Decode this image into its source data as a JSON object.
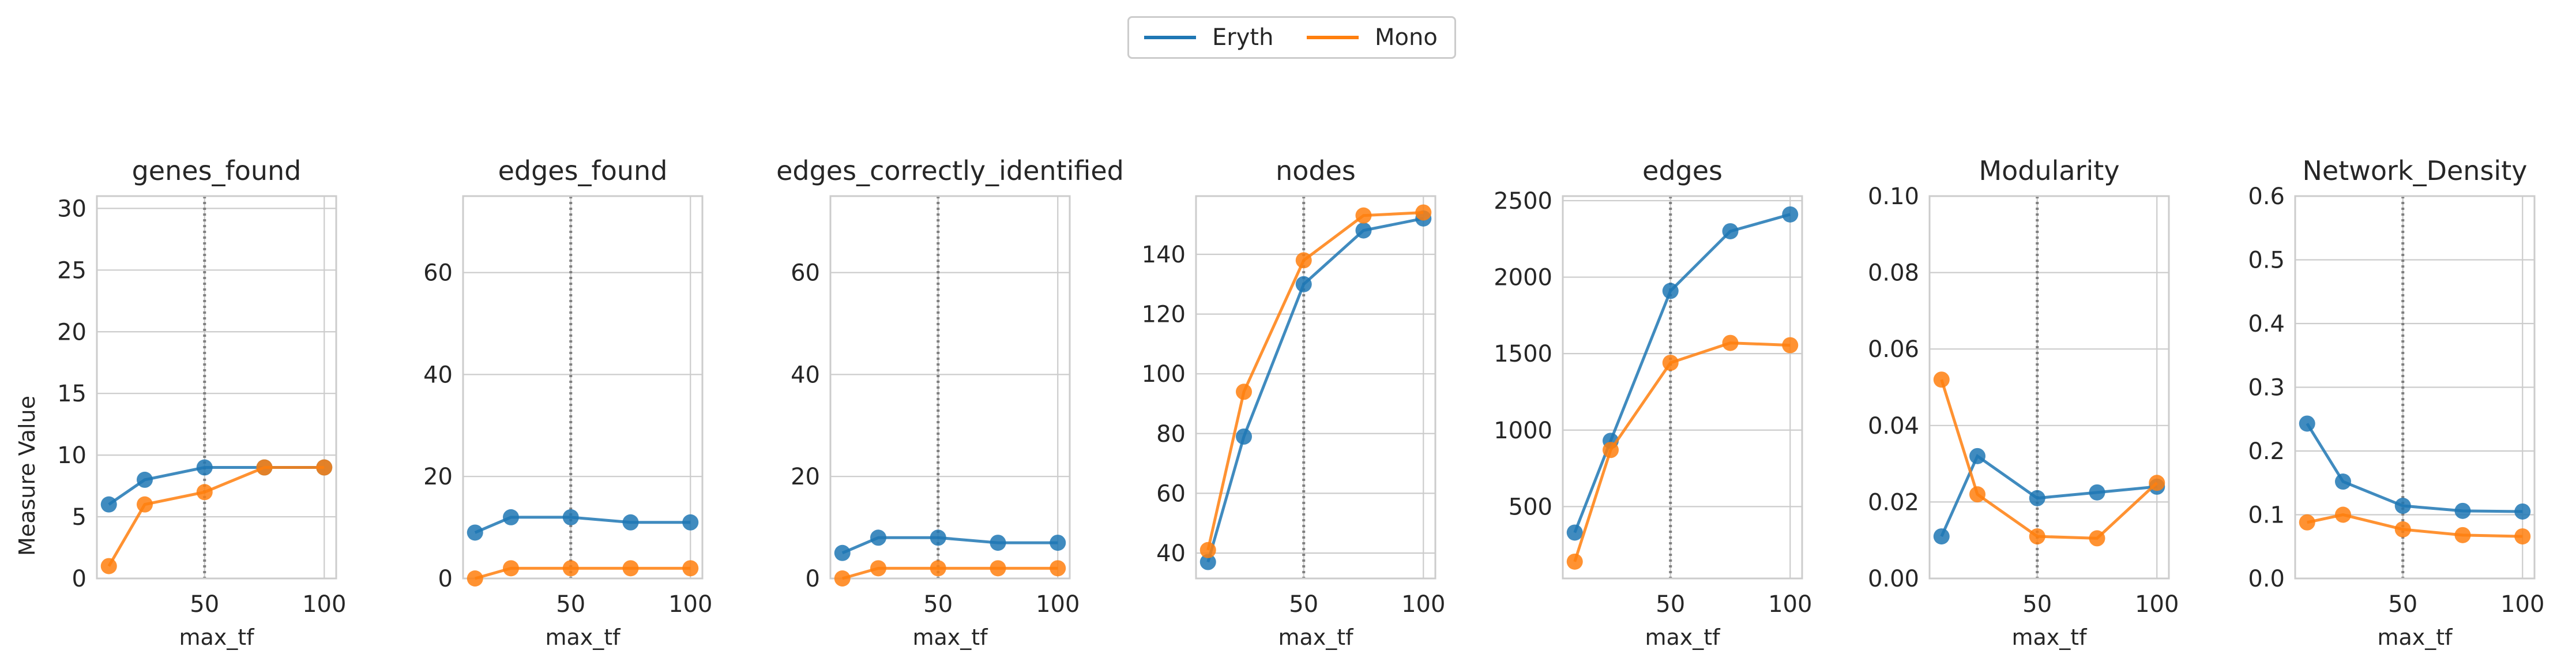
{
  "legend": {
    "items": [
      {
        "label": "Eryth",
        "color": "#1f77b4"
      },
      {
        "label": "Mono",
        "color": "#ff7f0e"
      }
    ]
  },
  "figure": {
    "ylabel": "Measure Value"
  },
  "chart_data": [
    {
      "type": "line",
      "title": "genes_found",
      "xlabel": "max_tf",
      "ylabel": "Measure Value",
      "xlim": [
        5,
        105
      ],
      "ylim": [
        0,
        31
      ],
      "xticks": [
        50,
        100
      ],
      "yticks": [
        0,
        5,
        10,
        15,
        20,
        25,
        30
      ],
      "vline": 50,
      "x": [
        10,
        25,
        50,
        75,
        100
      ],
      "series": [
        {
          "name": "Eryth",
          "values": [
            6,
            8,
            9,
            9,
            9
          ]
        },
        {
          "name": "Mono",
          "values": [
            1,
            6,
            7,
            9,
            9
          ]
        }
      ]
    },
    {
      "type": "line",
      "title": "edges_found",
      "xlabel": "max_tf",
      "ylabel": "",
      "xlim": [
        5,
        105
      ],
      "ylim": [
        0,
        75
      ],
      "xticks": [
        50,
        100
      ],
      "yticks": [
        0,
        20,
        40,
        60
      ],
      "vline": 50,
      "x": [
        10,
        25,
        50,
        75,
        100
      ],
      "series": [
        {
          "name": "Eryth",
          "values": [
            9,
            12,
            12,
            11,
            11
          ]
        },
        {
          "name": "Mono",
          "values": [
            0,
            2,
            2,
            2,
            2
          ]
        }
      ]
    },
    {
      "type": "line",
      "title": "edges_correctly_identified",
      "xlabel": "max_tf",
      "ylabel": "",
      "xlim": [
        5,
        105
      ],
      "ylim": [
        0,
        75
      ],
      "xticks": [
        50,
        100
      ],
      "yticks": [
        0,
        20,
        40,
        60
      ],
      "vline": 50,
      "x": [
        10,
        25,
        50,
        75,
        100
      ],
      "series": [
        {
          "name": "Eryth",
          "values": [
            5,
            8,
            8,
            7,
            7
          ]
        },
        {
          "name": "Mono",
          "values": [
            0,
            2,
            2,
            2,
            2
          ]
        }
      ]
    },
    {
      "type": "line",
      "title": "nodes",
      "xlabel": "max_tf",
      "ylabel": "",
      "xlim": [
        5,
        105
      ],
      "ylim": [
        31.5,
        159.5
      ],
      "xticks": [
        50,
        100
      ],
      "yticks": [
        40,
        60,
        80,
        100,
        120,
        140
      ],
      "vline": 50,
      "x": [
        10,
        25,
        50,
        75,
        100
      ],
      "series": [
        {
          "name": "Eryth",
          "values": [
            37,
            79,
            130,
            148,
            152
          ]
        },
        {
          "name": "Mono",
          "values": [
            41,
            94,
            138,
            153,
            154
          ]
        }
      ]
    },
    {
      "type": "line",
      "title": "edges",
      "xlabel": "max_tf",
      "ylabel": "",
      "xlim": [
        5,
        105
      ],
      "ylim": [
        30,
        2530
      ],
      "xticks": [
        50,
        100
      ],
      "yticks": [
        500,
        1000,
        1500,
        2000,
        2500
      ],
      "vline": 50,
      "x": [
        10,
        25,
        50,
        75,
        100
      ],
      "series": [
        {
          "name": "Eryth",
          "values": [
            330,
            930,
            1910,
            2300,
            2410
          ]
        },
        {
          "name": "Mono",
          "values": [
            140,
            870,
            1440,
            1570,
            1555
          ]
        }
      ]
    },
    {
      "type": "line",
      "title": "Modularity",
      "xlabel": "max_tf",
      "ylabel": "",
      "xlim": [
        5,
        105
      ],
      "ylim": [
        0,
        0.1
      ],
      "xticks": [
        50,
        100
      ],
      "yticks": [
        0.0,
        0.02,
        0.04,
        0.06,
        0.08,
        0.1
      ],
      "ytick_labels": [
        "0.00",
        "0.02",
        "0.04",
        "0.06",
        "0.08",
        "0.10"
      ],
      "vline": 50,
      "x": [
        10,
        25,
        50,
        75,
        100
      ],
      "series": [
        {
          "name": "Eryth",
          "values": [
            0.011,
            0.032,
            0.021,
            0.0225,
            0.024
          ]
        },
        {
          "name": "Mono",
          "values": [
            0.052,
            0.022,
            0.011,
            0.0105,
            0.025
          ]
        }
      ]
    },
    {
      "type": "line",
      "title": "Network_Density",
      "xlabel": "max_tf",
      "ylabel": "",
      "xlim": [
        5,
        105
      ],
      "ylim": [
        0,
        0.6
      ],
      "xticks": [
        50,
        100
      ],
      "yticks": [
        0.0,
        0.1,
        0.2,
        0.3,
        0.4,
        0.5,
        0.6
      ],
      "ytick_labels": [
        "0.0",
        "0.1",
        "0.2",
        "0.3",
        "0.4",
        "0.5",
        "0.6"
      ],
      "vline": 50,
      "x": [
        10,
        25,
        50,
        75,
        100
      ],
      "series": [
        {
          "name": "Eryth",
          "values": [
            0.243,
            0.152,
            0.114,
            0.106,
            0.105
          ]
        },
        {
          "name": "Mono",
          "values": [
            0.088,
            0.1,
            0.077,
            0.068,
            0.066
          ]
        }
      ]
    }
  ]
}
